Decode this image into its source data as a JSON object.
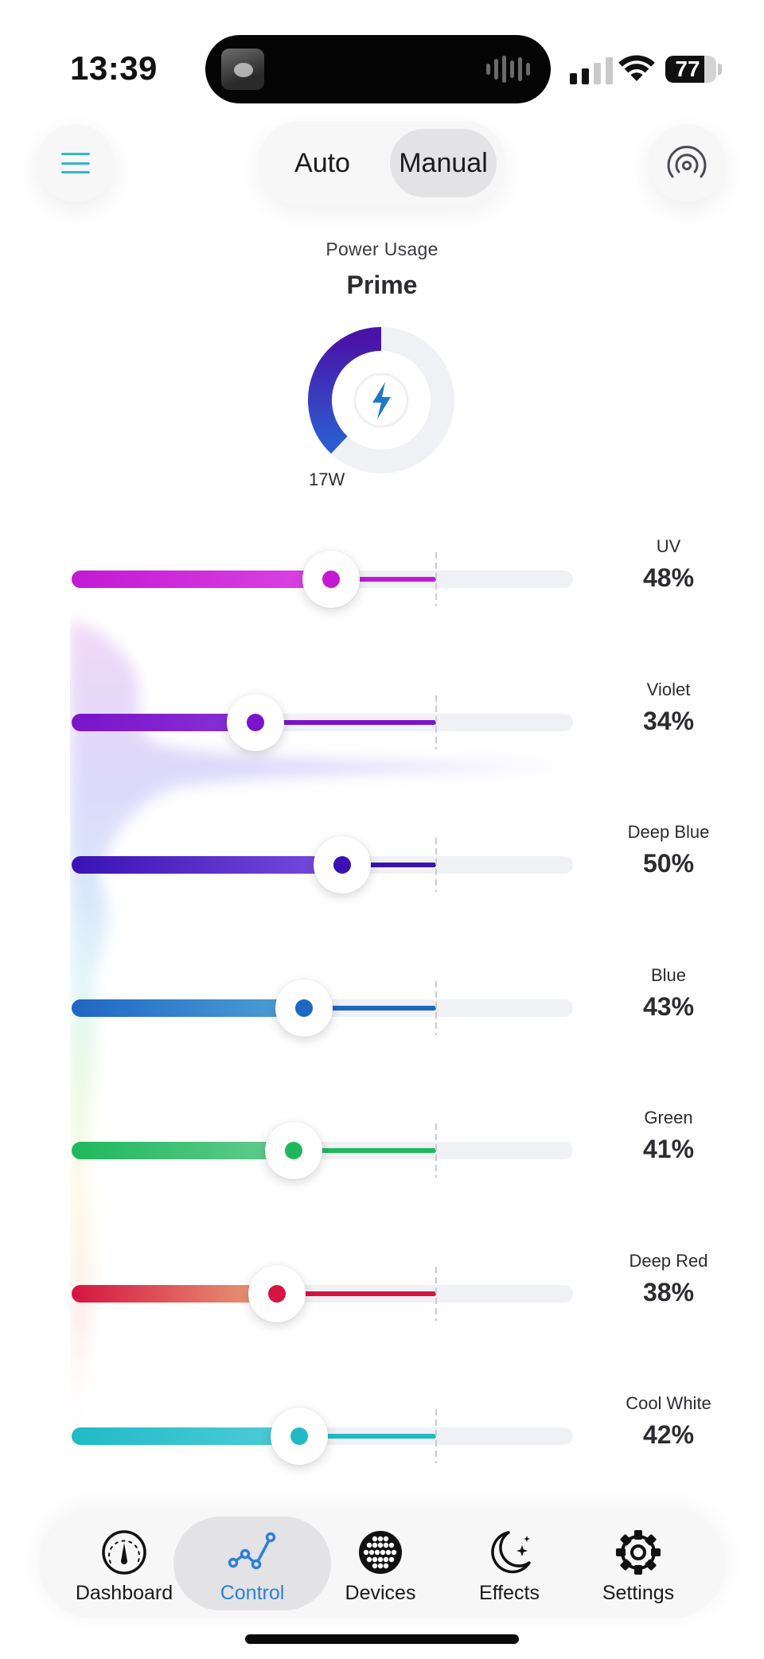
{
  "status_bar": {
    "time": "13:39",
    "battery": "77",
    "battery_level": 0.77,
    "signal_bars": 2
  },
  "header": {
    "menu_icon": "hamburger-menu-icon",
    "broadcast_icon": "broadcast-icon",
    "modes": [
      "Auto",
      "Manual"
    ],
    "selected_mode": "Manual"
  },
  "power": {
    "label": "Power Usage",
    "name": "Prime",
    "watts": "17W",
    "fraction": 0.38,
    "icon": "lightning-bolt-icon"
  },
  "channels": [
    {
      "id": "uv",
      "name": "UV",
      "value": "48%",
      "level": 0.48,
      "color": "#c21ad3",
      "light": "#dc45e4"
    },
    {
      "id": "violet",
      "name": "Violet",
      "value": "34%",
      "level": 0.34,
      "color": "#7a14c8",
      "light": "#8a32d6"
    },
    {
      "id": "deep-blue",
      "name": "Deep Blue",
      "value": "50%",
      "level": 0.5,
      "color": "#3a12b4",
      "light": "#7a4ee0"
    },
    {
      "id": "blue",
      "name": "Blue",
      "value": "43%",
      "level": 0.43,
      "color": "#1f66c4",
      "light": "#4fa3d6"
    },
    {
      "id": "green",
      "name": "Green",
      "value": "41%",
      "level": 0.41,
      "color": "#1fb75b",
      "light": "#66cd92"
    },
    {
      "id": "deep-red",
      "name": "Deep Red",
      "value": "38%",
      "level": 0.38,
      "color": "#d51440",
      "light": "#e9a47a"
    },
    {
      "id": "cool-white",
      "name": "Cool White",
      "value": "42%",
      "level": 0.42,
      "color": "#22b9c7",
      "light": "#4fcdd8"
    }
  ],
  "nav": {
    "items": [
      {
        "id": "dashboard",
        "label": "Dashboard",
        "icon": "gauge-icon"
      },
      {
        "id": "control",
        "label": "Control",
        "icon": "chart-line-icon"
      },
      {
        "id": "devices",
        "label": "Devices",
        "icon": "led-grid-icon"
      },
      {
        "id": "effects",
        "label": "Effects",
        "icon": "moon-stars-icon"
      },
      {
        "id": "settings",
        "label": "Settings",
        "icon": "gear-icon"
      }
    ],
    "active": "control",
    "active_color": "#2f7fd9"
  }
}
